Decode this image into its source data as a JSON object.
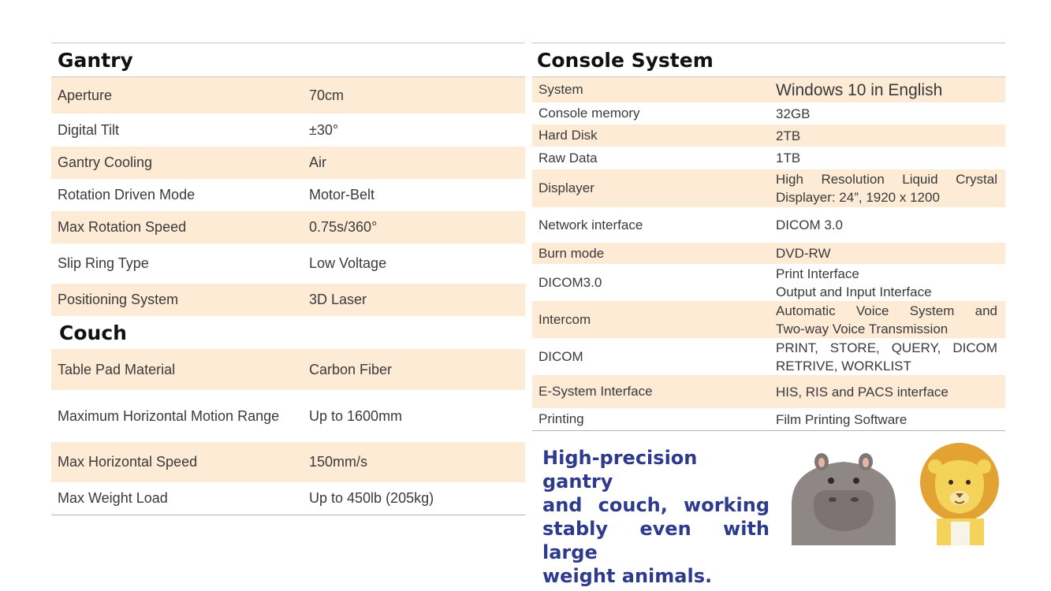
{
  "gantry": {
    "title": "Gantry",
    "rows": [
      {
        "label": "Aperture",
        "value": "70cm"
      },
      {
        "label": "Digital Tilt",
        "value": "±30°"
      },
      {
        "label": "Gantry Cooling",
        "value": "Air"
      },
      {
        "label": "Rotation Driven Mode",
        "value": "Motor-Belt"
      },
      {
        "label": "Max Rotation Speed",
        "value": "0.75s/360°"
      },
      {
        "label": "Slip Ring Type",
        "value": "Low Voltage"
      },
      {
        "label": "Positioning System",
        "value": "3D Laser"
      }
    ]
  },
  "couch": {
    "title": "Couch",
    "rows": [
      {
        "label": "Table Pad Material",
        "value": "Carbon Fiber"
      },
      {
        "label": "Maximum Horizontal Motion Range",
        "value": "Up to 1600mm"
      },
      {
        "label": "Max Horizontal Speed",
        "value": "150mm/s"
      },
      {
        "label": "Max Weight Load",
        "value": "Up to 450lb (205kg)"
      }
    ]
  },
  "console": {
    "title": "Console System",
    "rows": [
      {
        "label": "System",
        "value": [
          "Windows 10 in English"
        ]
      },
      {
        "label": "Console memory",
        "value": [
          "32GB"
        ]
      },
      {
        "label": "Hard Disk",
        "value": [
          "2TB"
        ]
      },
      {
        "label": "Raw Data",
        "value": [
          "1TB"
        ]
      },
      {
        "label": "Displayer",
        "value": [
          "High Resolution Liquid Crystal",
          "Displayer: 24”, 1920 x 1200"
        ]
      },
      {
        "label": "Network interface",
        "value": [
          "DICOM 3.0"
        ]
      },
      {
        "label": "Burn mode",
        "value": [
          "DVD-RW"
        ]
      },
      {
        "label": "DICOM3.0",
        "value": [
          "Print Interface",
          "Output and Input Interface"
        ]
      },
      {
        "label": "Intercom",
        "value": [
          "Automatic Voice System and",
          "Two-way Voice Transmission"
        ]
      },
      {
        "label": "DICOM",
        "value": [
          "PRINT, STORE, QUERY, DICOM",
          "RETRIVE, WORKLIST"
        ]
      },
      {
        "label": "E-System Interface",
        "value": [
          "HIS, RIS and PACS interface"
        ]
      },
      {
        "label": "Printing",
        "value": [
          "Film Printing Software"
        ]
      }
    ]
  },
  "promo": {
    "lines": [
      "High-precision gantry",
      "and couch, working",
      "stably even with large",
      "weight animals."
    ]
  },
  "colors": {
    "row_highlight": "#fdebd6",
    "promo_text": "#2e3a8c"
  },
  "illustrations": [
    "hippo-illustration",
    "lion-illustration"
  ]
}
